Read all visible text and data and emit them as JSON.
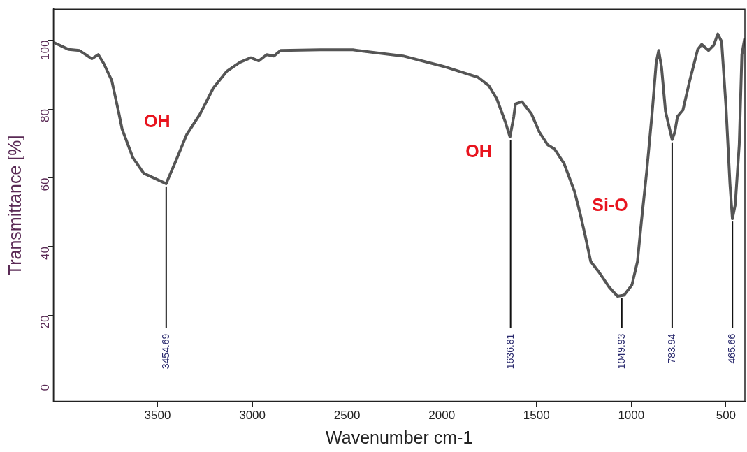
{
  "chart_data": {
    "type": "line",
    "xlabel": "Wavenumber cm-1",
    "ylabel": "Transmittance [%]",
    "xlim": [
      4050,
      400
    ],
    "xticks": [
      3500,
      3000,
      2500,
      2000,
      1500,
      1000,
      500
    ],
    "ylim": [
      -5,
      109
    ],
    "yticks": [
      0,
      20,
      40,
      60,
      80,
      100
    ],
    "grid": false,
    "legend": false,
    "marker": "none",
    "line_style": "solid",
    "series": [
      {
        "color": "#555555",
        "x": [
          4046,
          3969,
          3912,
          3847,
          3813,
          3784,
          3742,
          3706,
          3687,
          3630,
          3573,
          3455,
          3403,
          3347,
          3275,
          3206,
          3134,
          3065,
          3008,
          2966,
          2924,
          2886,
          2851,
          2641,
          2469,
          2416,
          2204,
          1992,
          1809,
          1752,
          1710,
          1665,
          1640,
          1620,
          1611,
          1576,
          1527,
          1485,
          1441,
          1405,
          1355,
          1299,
          1271,
          1243,
          1214,
          1172,
          1116,
          1073,
          1038,
          996,
          967,
          947,
          918,
          889,
          868,
          855,
          840,
          819,
          784,
          770,
          756,
          727,
          691,
          649,
          628,
          592,
          565,
          543,
          523,
          500,
          479,
          466,
          451,
          430,
          416,
          402
        ],
        "values": [
          99.3,
          97.3,
          97.0,
          94.6,
          95.8,
          93.2,
          88.3,
          79.2,
          74.1,
          65.8,
          61.3,
          58.3,
          65.0,
          72.5,
          78.6,
          86.1,
          91.0,
          93.6,
          94.9,
          94.0,
          95.8,
          95.4,
          97.0,
          97.2,
          97.2,
          96.8,
          95.4,
          92.4,
          89.2,
          86.8,
          83.0,
          76.3,
          71.9,
          77.8,
          81.5,
          82.1,
          78.6,
          73.3,
          69.6,
          68.4,
          64.2,
          56.0,
          49.9,
          43.2,
          35.7,
          32.7,
          28.2,
          25.6,
          25.9,
          28.9,
          35.7,
          46.9,
          62.0,
          79.3,
          93.6,
          97.0,
          92.1,
          79.3,
          71.1,
          73.3,
          77.8,
          79.7,
          88.3,
          97.3,
          98.8,
          97.0,
          98.5,
          101.8,
          99.6,
          80.8,
          58.3,
          48.1,
          52.2,
          69.5,
          95.8,
          100.3
        ]
      }
    ],
    "annotations": [
      "OH",
      "OH",
      "Si-O",
      {
        "text": "3454.69",
        "x": 3454.69,
        "y": 58.3
      },
      {
        "text": "1636.81",
        "x": 1636.81,
        "y": 71.9
      },
      {
        "text": "1049.93",
        "x": 1049.93,
        "y": 25.8
      },
      {
        "text": "783.94",
        "x": 783.94,
        "y": 71.1
      },
      {
        "text": "465.66",
        "x": 465.66,
        "y": 48.1
      }
    ]
  }
}
